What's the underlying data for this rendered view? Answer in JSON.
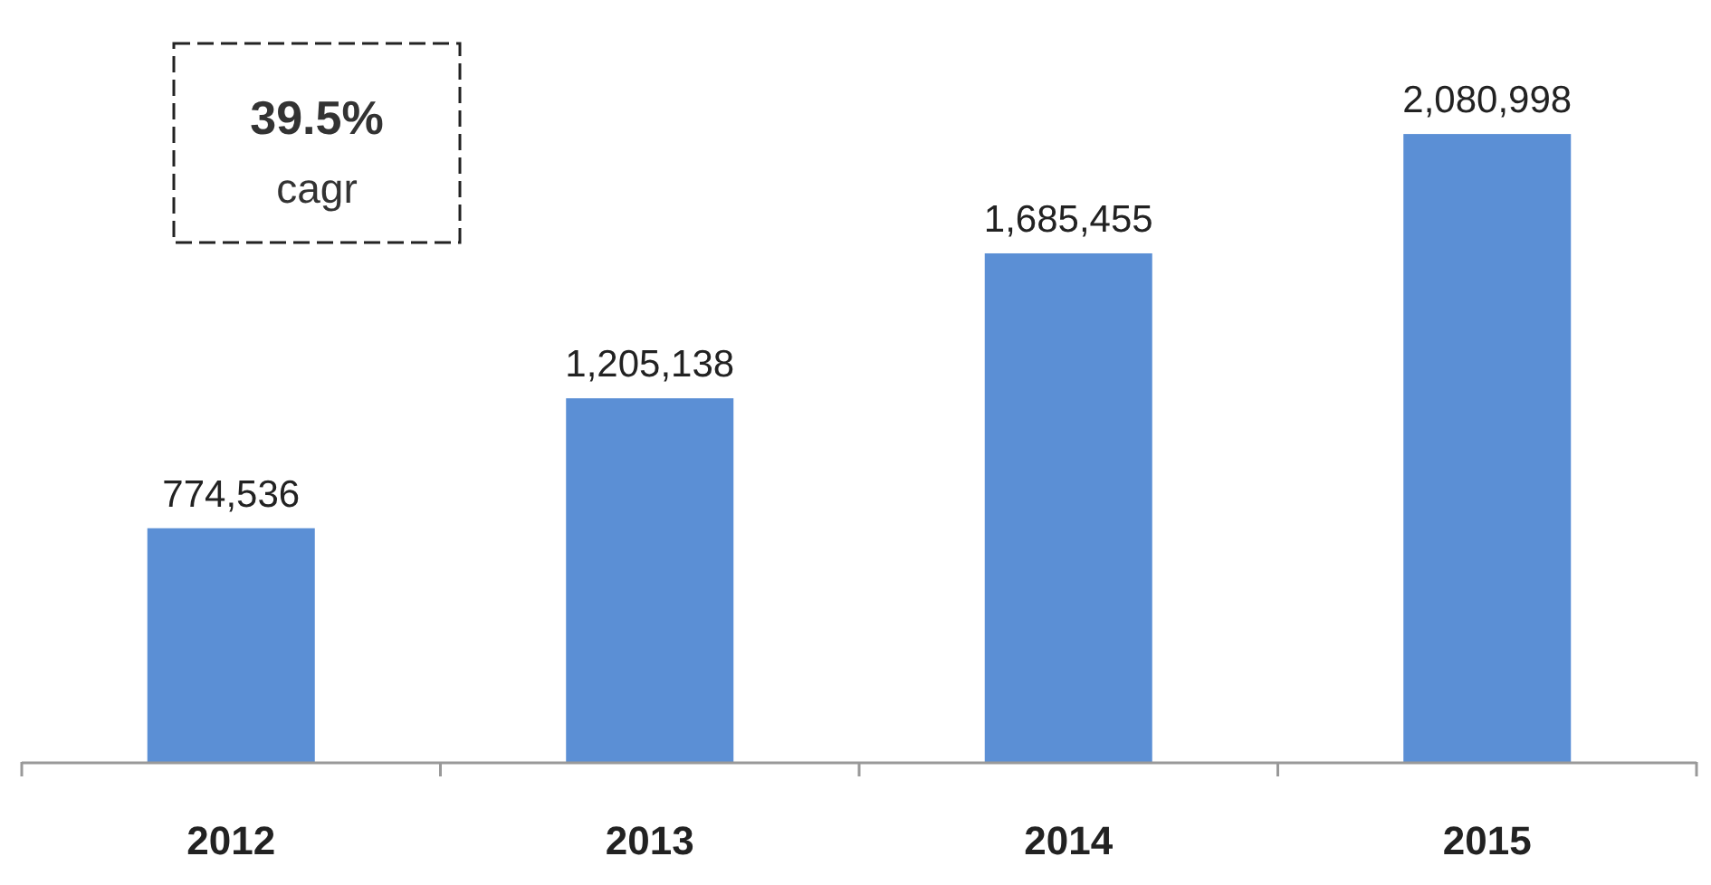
{
  "chart_data": {
    "type": "bar",
    "categories": [
      "2012",
      "2013",
      "2014",
      "2015"
    ],
    "values": [
      774536,
      1205138,
      1685455,
      2080998
    ],
    "value_labels": [
      "774,536",
      "1,205,138",
      "1,685,455",
      "2,080,998"
    ],
    "color": "#5b8fd5",
    "annotations": [
      "39.5%",
      "cagr"
    ]
  }
}
